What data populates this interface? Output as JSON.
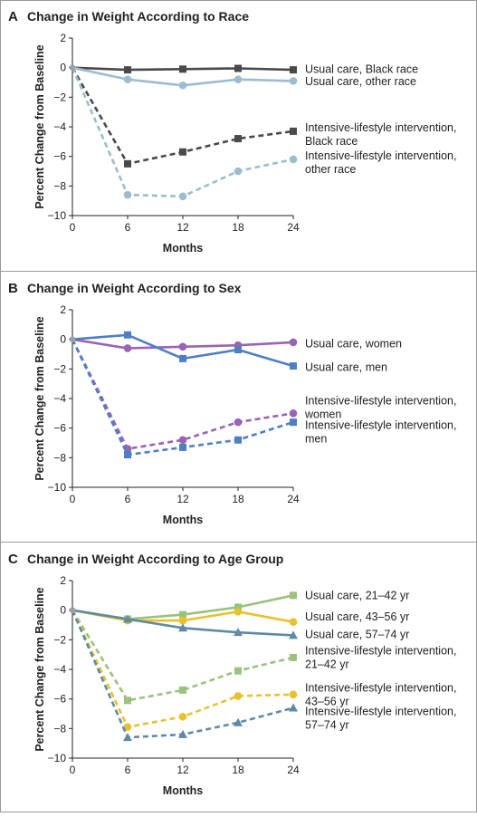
{
  "chart_data": [
    {
      "type": "line",
      "panel": "A",
      "title": "Change in Weight According to Race",
      "xlabel": "Months",
      "ylabel": "Percent Change from Baseline",
      "x": [
        0,
        6,
        12,
        18,
        24
      ],
      "xlim": [
        0,
        24
      ],
      "ylim": [
        -10,
        2
      ],
      "xticks": [
        "0",
        "6",
        "12",
        "18",
        "24"
      ],
      "yticks": [
        "2",
        "0",
        "−2",
        "−4",
        "−6",
        "−8",
        "−10"
      ],
      "legend": "right",
      "series": [
        {
          "name": "Usual care, Black race",
          "lines": [
            "Usual care, Black race"
          ],
          "color": "#4a4a4a",
          "dash": false,
          "marker": "square",
          "values": [
            0,
            -0.15,
            -0.1,
            -0.05,
            -0.15
          ],
          "label_y": -0.1
        },
        {
          "name": "Usual care, other race",
          "lines": [
            "Usual care, other race"
          ],
          "color": "#9dbcd0",
          "dash": false,
          "marker": "circle",
          "values": [
            0,
            -0.8,
            -1.2,
            -0.8,
            -0.9
          ],
          "label_y": -0.95
        },
        {
          "name": "Intensive-lifestyle intervention, Black race",
          "lines": [
            "Intensive-lifestyle intervention,",
            "Black race"
          ],
          "color": "#4a4a4a",
          "dash": true,
          "marker": "square",
          "values": [
            0,
            -6.5,
            -5.7,
            -4.8,
            -4.3
          ],
          "label_y": -4.05
        },
        {
          "name": "Intensive-lifestyle intervention, other race",
          "lines": [
            "Intensive-lifestyle intervention,",
            "other race"
          ],
          "color": "#9dbcd0",
          "dash": true,
          "marker": "circle",
          "values": [
            0,
            -8.6,
            -8.7,
            -7.0,
            -6.2
          ],
          "label_y": -5.95
        }
      ]
    },
    {
      "type": "line",
      "panel": "B",
      "title": "Change in Weight According to Sex",
      "xlabel": "Months",
      "ylabel": "Percent Change from Baseline",
      "x": [
        0,
        6,
        12,
        18,
        24
      ],
      "xlim": [
        0,
        24
      ],
      "ylim": [
        -10,
        2
      ],
      "xticks": [
        "0",
        "6",
        "12",
        "18",
        "24"
      ],
      "yticks": [
        "2",
        "0",
        "−2",
        "−4",
        "−6",
        "−8",
        "−10"
      ],
      "legend": "right",
      "series": [
        {
          "name": "Usual care, women",
          "lines": [
            "Usual care, women"
          ],
          "color": "#9a63b4",
          "dash": false,
          "marker": "circle",
          "values": [
            0,
            -0.6,
            -0.5,
            -0.4,
            -0.2
          ],
          "label_y": -0.3
        },
        {
          "name": "Usual care, men",
          "lines": [
            "Usual care, men"
          ],
          "color": "#4e7fc4",
          "dash": false,
          "marker": "square",
          "values": [
            0,
            0.3,
            -1.3,
            -0.7,
            -1.8
          ],
          "label_y": -1.9
        },
        {
          "name": "Intensive-lifestyle intervention, women",
          "lines": [
            "Intensive-lifestyle intervention,",
            "women"
          ],
          "color": "#9a63b4",
          "dash": true,
          "marker": "circle",
          "values": [
            0,
            -7.4,
            -6.8,
            -5.6,
            -5.0
          ],
          "label_y": -4.15
        },
        {
          "name": "Intensive-lifestyle intervention, men",
          "lines": [
            "Intensive-lifestyle intervention,",
            "men"
          ],
          "color": "#4e7fc4",
          "dash": true,
          "marker": "square",
          "values": [
            0,
            -7.8,
            -7.3,
            -6.8,
            -5.6
          ],
          "label_y": -5.8
        }
      ]
    },
    {
      "type": "line",
      "panel": "C",
      "title": "Change in Weight According to Age Group",
      "xlabel": "Months",
      "ylabel": "Percent Change from Baseline",
      "x": [
        0,
        6,
        12,
        18,
        24
      ],
      "xlim": [
        0,
        24
      ],
      "ylim": [
        -10,
        2
      ],
      "xticks": [
        "0",
        "6",
        "12",
        "18",
        "24"
      ],
      "yticks": [
        "2",
        "0",
        "−2",
        "−4",
        "−6",
        "−8",
        "−10"
      ],
      "legend": "right",
      "series": [
        {
          "name": "Usual care, 21–42 yr",
          "lines": [
            "Usual care, 21–42 yr"
          ],
          "color": "#9bc27c",
          "dash": false,
          "marker": "square",
          "values": [
            0,
            -0.6,
            -0.3,
            0.2,
            1.0
          ],
          "label_y": 1.0
        },
        {
          "name": "Usual care, 43–56 yr",
          "lines": [
            "Usual care, 43–56 yr"
          ],
          "color": "#e8c12e",
          "dash": false,
          "marker": "circle",
          "values": [
            0,
            -0.7,
            -0.7,
            -0.1,
            -0.8
          ],
          "label_y": -0.45
        },
        {
          "name": "Usual care, 57–74 yr",
          "lines": [
            "Usual care, 57–74 yr"
          ],
          "color": "#5e8aa5",
          "dash": false,
          "marker": "triangle",
          "values": [
            0,
            -0.6,
            -1.2,
            -1.5,
            -1.7
          ],
          "label_y": -1.65
        },
        {
          "name": "Intensive-lifestyle intervention, 21–42 yr",
          "lines": [
            "Intensive-lifestyle intervention,",
            "21–42 yr"
          ],
          "color": "#9bc27c",
          "dash": true,
          "marker": "square",
          "values": [
            0,
            -6.1,
            -5.4,
            -4.1,
            -3.2
          ],
          "label_y": -2.75
        },
        {
          "name": "Intensive-lifestyle intervention, 43–56 yr",
          "lines": [
            "Intensive-lifestyle intervention,",
            "43–56 yr"
          ],
          "color": "#e8c12e",
          "dash": true,
          "marker": "circle",
          "values": [
            0,
            -7.9,
            -7.2,
            -5.8,
            -5.7
          ],
          "label_y": -5.25
        },
        {
          "name": "Intensive-lifestyle intervention, 57–74 yr",
          "lines": [
            "Intensive-lifestyle intervention,",
            "57–74 yr"
          ],
          "color": "#5e8aa5",
          "dash": true,
          "marker": "triangle",
          "values": [
            0,
            -8.6,
            -8.4,
            -7.6,
            -6.6
          ],
          "label_y": -6.85
        }
      ]
    }
  ]
}
